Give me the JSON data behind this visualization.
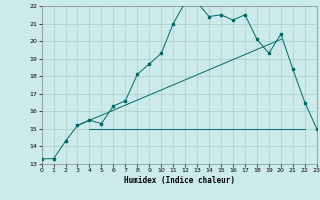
{
  "xlabel": "Humidex (Indice chaleur)",
  "bg_color": "#cceaea",
  "grid_color": "#aacccc",
  "line_color": "#006868",
  "xlim": [
    0,
    23
  ],
  "ylim": [
    13,
    22
  ],
  "x_ticks": [
    0,
    1,
    2,
    3,
    4,
    5,
    6,
    7,
    8,
    9,
    10,
    11,
    12,
    13,
    14,
    15,
    16,
    17,
    18,
    19,
    20,
    21,
    22,
    23
  ],
  "y_ticks": [
    13,
    14,
    15,
    16,
    17,
    18,
    19,
    20,
    21,
    22
  ],
  "line1_x": [
    0,
    1,
    2,
    3,
    4,
    5,
    6,
    7,
    8,
    9,
    10,
    11,
    12,
    13,
    14,
    15,
    16,
    17,
    18,
    19,
    20,
    21,
    22,
    23
  ],
  "line1_y": [
    13.3,
    13.3,
    14.3,
    15.2,
    15.5,
    15.3,
    16.3,
    16.6,
    18.1,
    18.7,
    19.3,
    21.0,
    22.2,
    22.2,
    21.4,
    21.5,
    21.2,
    21.5,
    20.1,
    19.3,
    20.4,
    18.4,
    16.5,
    15.0
  ],
  "line2_x": [
    3,
    20
  ],
  "line2_y": [
    15.2,
    20.1
  ],
  "line3_x": [
    4,
    22
  ],
  "line3_y": [
    15.0,
    15.0
  ]
}
